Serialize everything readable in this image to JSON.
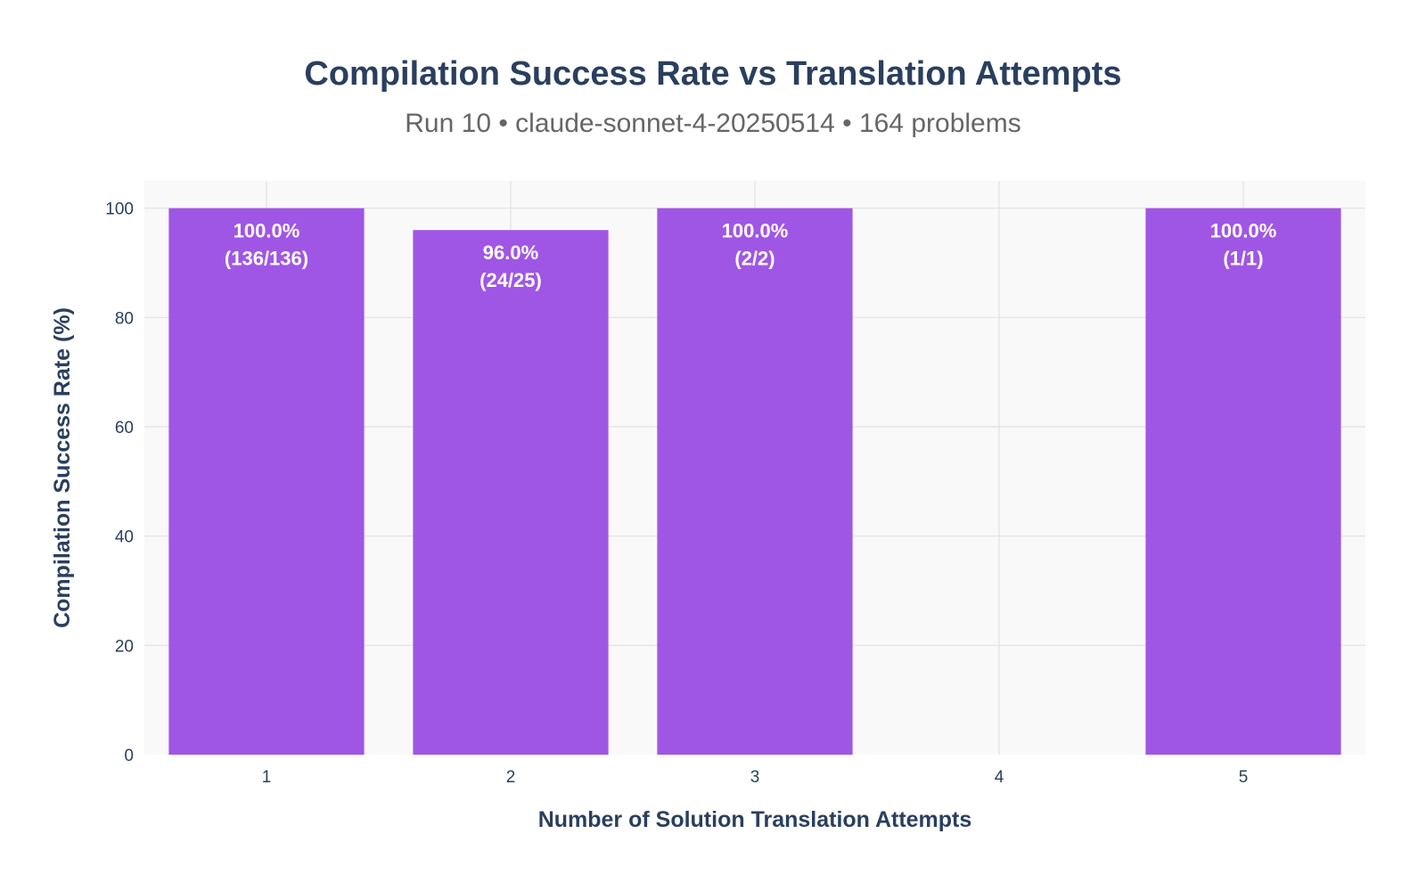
{
  "chart_data": {
    "type": "bar",
    "title": "Compilation Success Rate vs Translation Attempts",
    "subtitle": "Run 10 • claude-sonnet-4-20250514 • 164 problems",
    "xlabel": "Number of Solution Translation Attempts",
    "ylabel": "Compilation Success Rate (%)",
    "x_ticks": [
      "1",
      "2",
      "3",
      "4",
      "5"
    ],
    "y_ticks": [
      "0",
      "20",
      "40",
      "60",
      "80",
      "100"
    ],
    "xlim": [
      0.5,
      5.5
    ],
    "ylim": [
      0,
      105
    ],
    "grid": true,
    "bar_color": "#9b4de4",
    "plot_background": "#f9f9f9",
    "bars": [
      {
        "x": 1,
        "value": 100.0,
        "label_pct": "100.0%",
        "label_count": "(136/136)"
      },
      {
        "x": 2,
        "value": 96.0,
        "label_pct": "96.0%",
        "label_count": "(24/25)"
      },
      {
        "x": 3,
        "value": 100.0,
        "label_pct": "100.0%",
        "label_count": "(2/2)"
      },
      {
        "x": 5,
        "value": 100.0,
        "label_pct": "100.0%",
        "label_count": "(1/1)"
      }
    ]
  }
}
